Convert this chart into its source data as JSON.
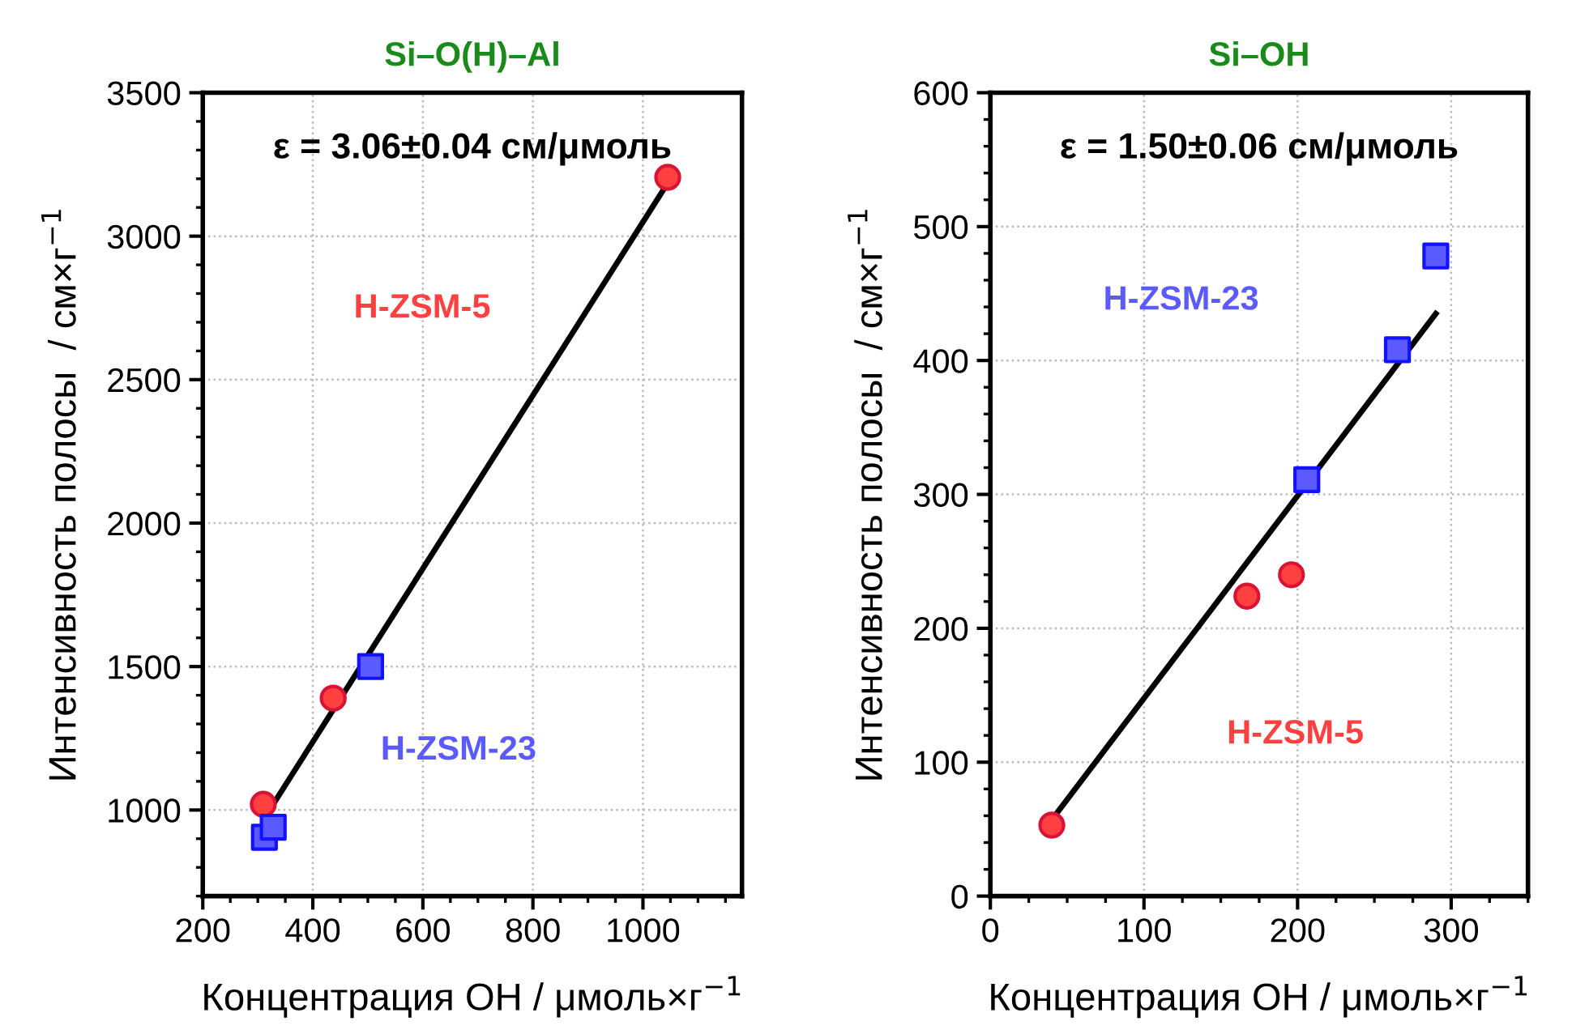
{
  "chart_data": [
    {
      "type": "scatter",
      "title": "Si–O(H)–Al",
      "xlabel": "Концентрация ОН / μмоль×г$^{−1}$",
      "ylabel": "Интенсивность полосы  / см×г$^{−1}$",
      "xlim": [
        200,
        1180
      ],
      "xticks": [
        200,
        400,
        600,
        800,
        1000
      ],
      "ylim": [
        700,
        3500
      ],
      "yticks": [
        1000,
        1500,
        2000,
        2500,
        3000,
        3500
      ],
      "grid": true,
      "annotations": [
        "ε = 3.06±0.04 см/μмоль"
      ],
      "series": [
        {
          "name": "H-ZSM-5",
          "color": "#ff4040",
          "marker": "circle",
          "x": [
            310,
            437,
            1045
          ],
          "values": [
            1020,
            1390,
            3205
          ]
        },
        {
          "name": "H-ZSM-23",
          "color": "#5a5aff",
          "marker": "square",
          "x": [
            312,
            328,
            505
          ],
          "values": [
            905,
            940,
            1500
          ]
        },
        {
          "type": "line",
          "color": "#000000",
          "marker": "none",
          "line_style": "solid",
          "x": [
            327,
            1040
          ],
          "values": [
            1017,
            3170
          ]
        }
      ]
    },
    {
      "type": "scatter",
      "title": "Si–OH",
      "xlabel": "Концентрация ОН / μмоль×г$^{−1}$",
      "ylabel": "Интенсивность полосы  / см×г$^{−1}$",
      "xlim": [
        0,
        350
      ],
      "xticks": [
        0,
        100,
        200,
        300
      ],
      "ylim": [
        0,
        600
      ],
      "yticks": [
        0,
        100,
        200,
        300,
        400,
        500,
        600
      ],
      "grid": true,
      "annotations": [
        "ε = 1.50±0.06 см/μмоль"
      ],
      "series": [
        {
          "name": "H-ZSM-5",
          "color": "#ff4040",
          "marker": "circle",
          "x": [
            40,
            167,
            196
          ],
          "values": [
            53,
            224,
            240
          ]
        },
        {
          "name": "H-ZSM-23",
          "color": "#5a5aff",
          "marker": "square",
          "x": [
            206,
            265,
            290
          ],
          "values": [
            311,
            408,
            478
          ]
        },
        {
          "type": "line",
          "color": "#000000",
          "marker": "none",
          "line_style": "solid",
          "x": [
            42,
            290
          ],
          "values": [
            60,
            435
          ]
        }
      ]
    }
  ]
}
